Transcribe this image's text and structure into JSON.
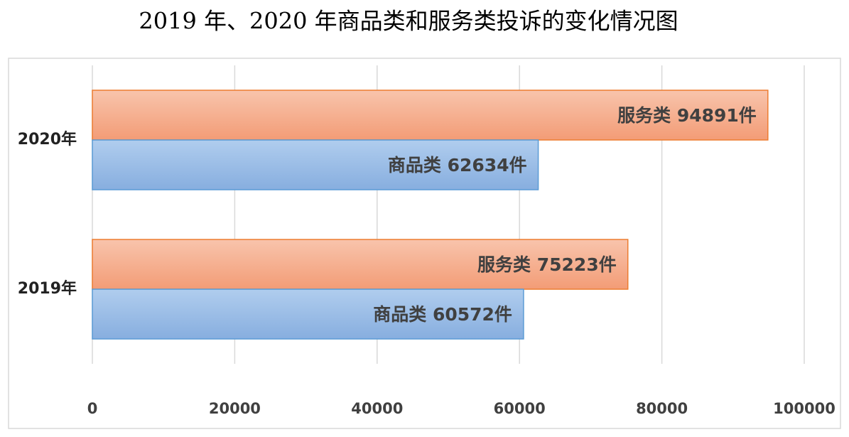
{
  "chart_data": {
    "type": "hbar",
    "title": "2019 年、2020 年商品类和服务类投诉的变化情况图",
    "categories": [
      "2020年",
      "2019年"
    ],
    "series": [
      {
        "color": "#ed7d31",
        "values": [
          94891,
          75223
        ],
        "value_labels": [
          "服务类 94891件",
          "服务类 75223件"
        ]
      },
      {
        "color": "#5b9bd5",
        "values": [
          62634,
          60572
        ],
        "value_labels": [
          "商品类 62634件",
          "商品类 60572件"
        ]
      }
    ],
    "xlim": [
      0,
      100000
    ],
    "xticks": [
      0,
      20000,
      40000,
      60000,
      80000,
      100000
    ],
    "grid": true
  }
}
